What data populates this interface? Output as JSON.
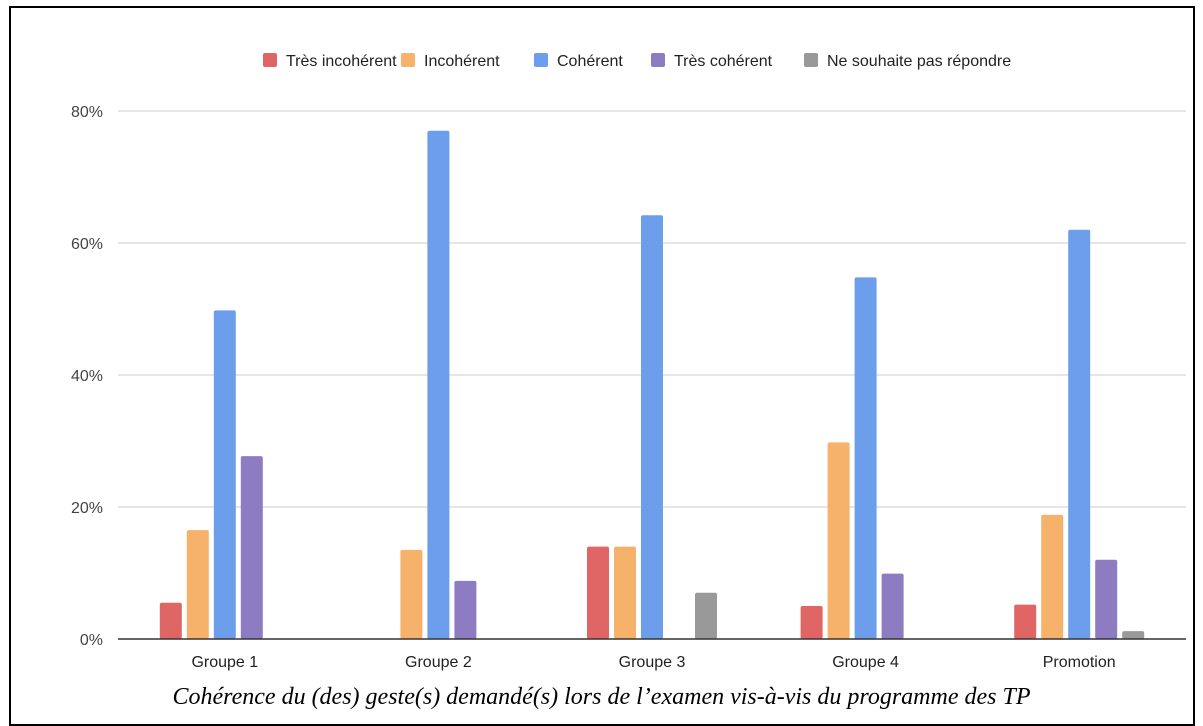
{
  "chart_data": {
    "type": "bar",
    "title": "",
    "xlabel": "",
    "ylabel": "",
    "categories": [
      "Groupe 1",
      "Groupe 2",
      "Groupe 3",
      "Groupe 4",
      "Promotion"
    ],
    "series": [
      {
        "name": "Très incohérent",
        "color": "#e06666",
        "values": [
          5.5,
          0,
          14,
          5,
          5.2
        ]
      },
      {
        "name": "Incohérent",
        "color": "#f6b26b",
        "values": [
          16.5,
          13.5,
          14,
          29.8,
          18.8
        ]
      },
      {
        "name": "Cohérent",
        "color": "#6d9eeb",
        "values": [
          49.8,
          77,
          64.2,
          54.8,
          62
        ]
      },
      {
        "name": "Très cohérent",
        "color": "#8e7cc3",
        "values": [
          27.7,
          8.8,
          0,
          9.9,
          12
        ]
      },
      {
        "name": "Ne souhaite pas répondre",
        "color": "#999999",
        "values": [
          0,
          0,
          7,
          0,
          1.2
        ]
      }
    ],
    "ylim": [
      0,
      80
    ],
    "yticks": [
      "0%",
      "20%",
      "40%",
      "60%",
      "80%"
    ],
    "grid": true,
    "legend": "top"
  },
  "caption": "Cohérence du (des) geste(s) demandé(s) lors de l’examen vis-à-vis du programme des TP"
}
